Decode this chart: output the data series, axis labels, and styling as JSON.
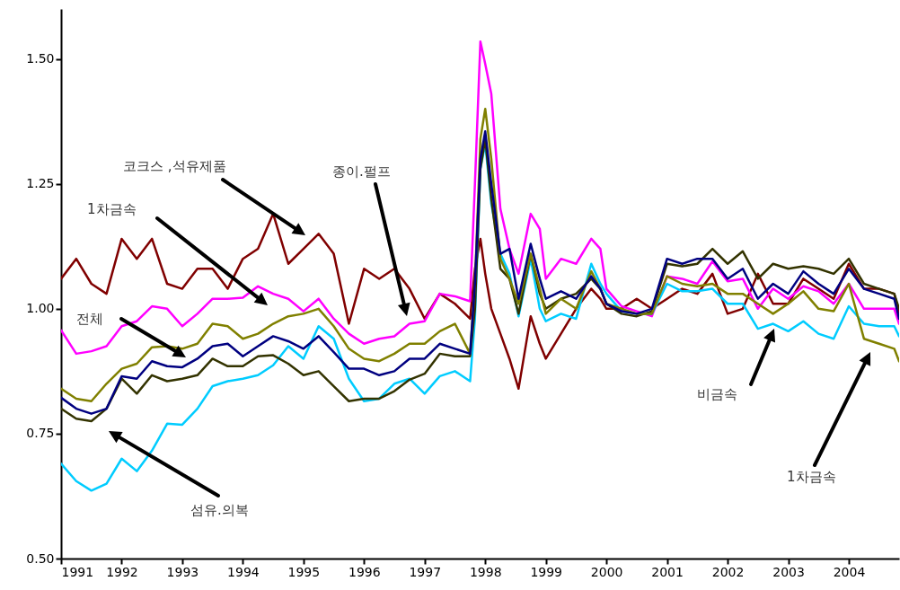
{
  "chart_data": {
    "type": "line",
    "x": [
      1991,
      1991.25,
      1991.5,
      1991.75,
      1992,
      1992.25,
      1992.5,
      1992.75,
      1993,
      1993.25,
      1993.5,
      1993.75,
      1994,
      1994.25,
      1994.5,
      1994.75,
      1995,
      1995.25,
      1995.5,
      1995.75,
      1996,
      1996.25,
      1996.5,
      1996.75,
      1997,
      1997.25,
      1997.5,
      1997.75,
      1997.83,
      1997.92,
      1998,
      1998.1,
      1998.25,
      1998.4,
      1998.55,
      1998.75,
      1998.9,
      1999,
      1999.25,
      1999.5,
      1999.75,
      1999.9,
      2000,
      2000.25,
      2000.5,
      2000.75,
      2001,
      2001.25,
      2001.5,
      2001.75,
      2002,
      2002.25,
      2002.5,
      2002.75,
      2003,
      2003.25,
      2003.5,
      2003.75,
      2004,
      2004.25,
      2004.5,
      2004.75,
      2004.83
    ],
    "series": [
      {
        "color": "#800000",
        "values": [
          1.06,
          1.1,
          1.05,
          1.03,
          1.14,
          1.1,
          1.14,
          1.05,
          1.04,
          1.08,
          1.08,
          1.04,
          1.1,
          1.12,
          1.19,
          1.09,
          1.12,
          1.15,
          1.11,
          0.97,
          1.08,
          1.06,
          1.08,
          1.04,
          0.98,
          1.03,
          1.01,
          0.98,
          1.08,
          1.14,
          1.07,
          1.0,
          0.95,
          0.9,
          0.84,
          0.985,
          0.93,
          0.9,
          0.95,
          1.0,
          1.04,
          1.02,
          1.0,
          1.0,
          1.02,
          1.0,
          1.02,
          1.04,
          1.03,
          1.07,
          0.99,
          1.0,
          1.07,
          1.01,
          1.01,
          1.06,
          1.04,
          1.02,
          1.09,
          1.04,
          1.04,
          1.03,
          0.99
        ]
      },
      {
        "color": "#ff00ff",
        "values": [
          0.957,
          0.91,
          0.915,
          0.925,
          0.965,
          0.975,
          1.005,
          1.0,
          0.965,
          0.99,
          1.02,
          1.02,
          1.022,
          1.045,
          1.03,
          1.02,
          0.995,
          1.02,
          0.98,
          0.95,
          0.93,
          0.94,
          0.945,
          0.97,
          0.975,
          1.03,
          1.025,
          1.015,
          1.25,
          1.535,
          1.49,
          1.43,
          1.2,
          1.12,
          1.07,
          1.19,
          1.16,
          1.06,
          1.1,
          1.09,
          1.14,
          1.12,
          1.04,
          1.005,
          0.995,
          0.985,
          1.065,
          1.06,
          1.05,
          1.095,
          1.055,
          1.06,
          1.0,
          1.04,
          1.02,
          1.045,
          1.035,
          1.01,
          1.05,
          1.0,
          1.0,
          1.0,
          0.97
        ]
      },
      {
        "color": "#00ccff",
        "values": [
          0.69,
          0.655,
          0.636,
          0.65,
          0.7,
          0.675,
          0.716,
          0.77,
          0.768,
          0.8,
          0.845,
          0.855,
          0.86,
          0.867,
          0.887,
          0.925,
          0.9,
          0.965,
          0.94,
          0.86,
          0.815,
          0.82,
          0.85,
          0.86,
          0.83,
          0.865,
          0.875,
          0.855,
          0.98,
          1.28,
          1.33,
          1.21,
          1.11,
          1.07,
          0.985,
          1.1,
          1.0,
          0.975,
          0.99,
          0.98,
          1.09,
          1.05,
          1.03,
          0.995,
          0.99,
          0.99,
          1.05,
          1.035,
          1.035,
          1.04,
          1.01,
          1.01,
          0.96,
          0.97,
          0.955,
          0.975,
          0.95,
          0.94,
          1.005,
          0.97,
          0.965,
          0.965,
          0.945
        ]
      },
      {
        "color": "#333300",
        "values": [
          0.8,
          0.78,
          0.775,
          0.8,
          0.86,
          0.83,
          0.867,
          0.855,
          0.86,
          0.867,
          0.9,
          0.885,
          0.885,
          0.905,
          0.907,
          0.89,
          0.867,
          0.875,
          0.845,
          0.815,
          0.82,
          0.82,
          0.835,
          0.858,
          0.87,
          0.91,
          0.905,
          0.905,
          1.0,
          1.28,
          1.34,
          1.22,
          1.08,
          1.06,
          0.99,
          1.11,
          1.03,
          1.0,
          1.02,
          1.03,
          1.06,
          1.04,
          1.01,
          0.99,
          0.985,
          0.995,
          1.09,
          1.085,
          1.09,
          1.12,
          1.09,
          1.115,
          1.06,
          1.09,
          1.08,
          1.085,
          1.08,
          1.07,
          1.1,
          1.05,
          1.04,
          1.03,
          1.0
        ]
      },
      {
        "color": "#808000",
        "values": [
          0.84,
          0.82,
          0.815,
          0.85,
          0.88,
          0.89,
          0.923,
          0.925,
          0.92,
          0.93,
          0.97,
          0.965,
          0.94,
          0.95,
          0.97,
          0.985,
          0.99,
          1.0,
          0.965,
          0.92,
          0.9,
          0.895,
          0.91,
          0.93,
          0.93,
          0.955,
          0.97,
          0.91,
          1.05,
          1.34,
          1.4,
          1.3,
          1.1,
          1.06,
          1.01,
          1.11,
          1.04,
          0.99,
          1.02,
          1.0,
          1.075,
          1.04,
          1.01,
          1.0,
          0.99,
          0.99,
          1.065,
          1.05,
          1.045,
          1.05,
          1.03,
          1.03,
          1.01,
          0.99,
          1.01,
          1.035,
          1.0,
          0.995,
          1.05,
          0.94,
          0.93,
          0.92,
          0.895
        ]
      },
      {
        "color": "#000080",
        "values": [
          0.822,
          0.8,
          0.79,
          0.8,
          0.865,
          0.86,
          0.895,
          0.885,
          0.883,
          0.9,
          0.925,
          0.93,
          0.905,
          0.925,
          0.945,
          0.935,
          0.92,
          0.945,
          0.913,
          0.88,
          0.88,
          0.867,
          0.875,
          0.9,
          0.9,
          0.93,
          0.92,
          0.91,
          1.05,
          1.3,
          1.355,
          1.25,
          1.11,
          1.12,
          1.02,
          1.13,
          1.06,
          1.02,
          1.035,
          1.02,
          1.065,
          1.04,
          1.01,
          0.995,
          0.99,
          1.0,
          1.1,
          1.09,
          1.1,
          1.1,
          1.06,
          1.08,
          1.02,
          1.05,
          1.03,
          1.075,
          1.05,
          1.03,
          1.08,
          1.04,
          1.03,
          1.02,
          0.98
        ]
      }
    ],
    "xlim": [
      1991,
      2004.83
    ],
    "xticks": [
      1991,
      1992,
      1993,
      1994,
      1995,
      1996,
      1997,
      1998,
      1999,
      2000,
      2001,
      2002,
      2003,
      2004
    ],
    "ylim": [
      0.5,
      1.6
    ],
    "yticks": [
      {
        "value": 0.5,
        "label": "0.50"
      },
      {
        "value": 0.75,
        "label": "0.75"
      },
      {
        "value": 1.0,
        "label": "1.00"
      },
      {
        "value": 1.25,
        "label": "1.25"
      },
      {
        "value": 1.5,
        "label": "1.50"
      }
    ],
    "annotations": [
      "코크스 ,석유제품",
      "1차금속",
      "종이.펄프",
      "전체",
      "섬유.의복",
      "비금속",
      "1차금속"
    ]
  }
}
